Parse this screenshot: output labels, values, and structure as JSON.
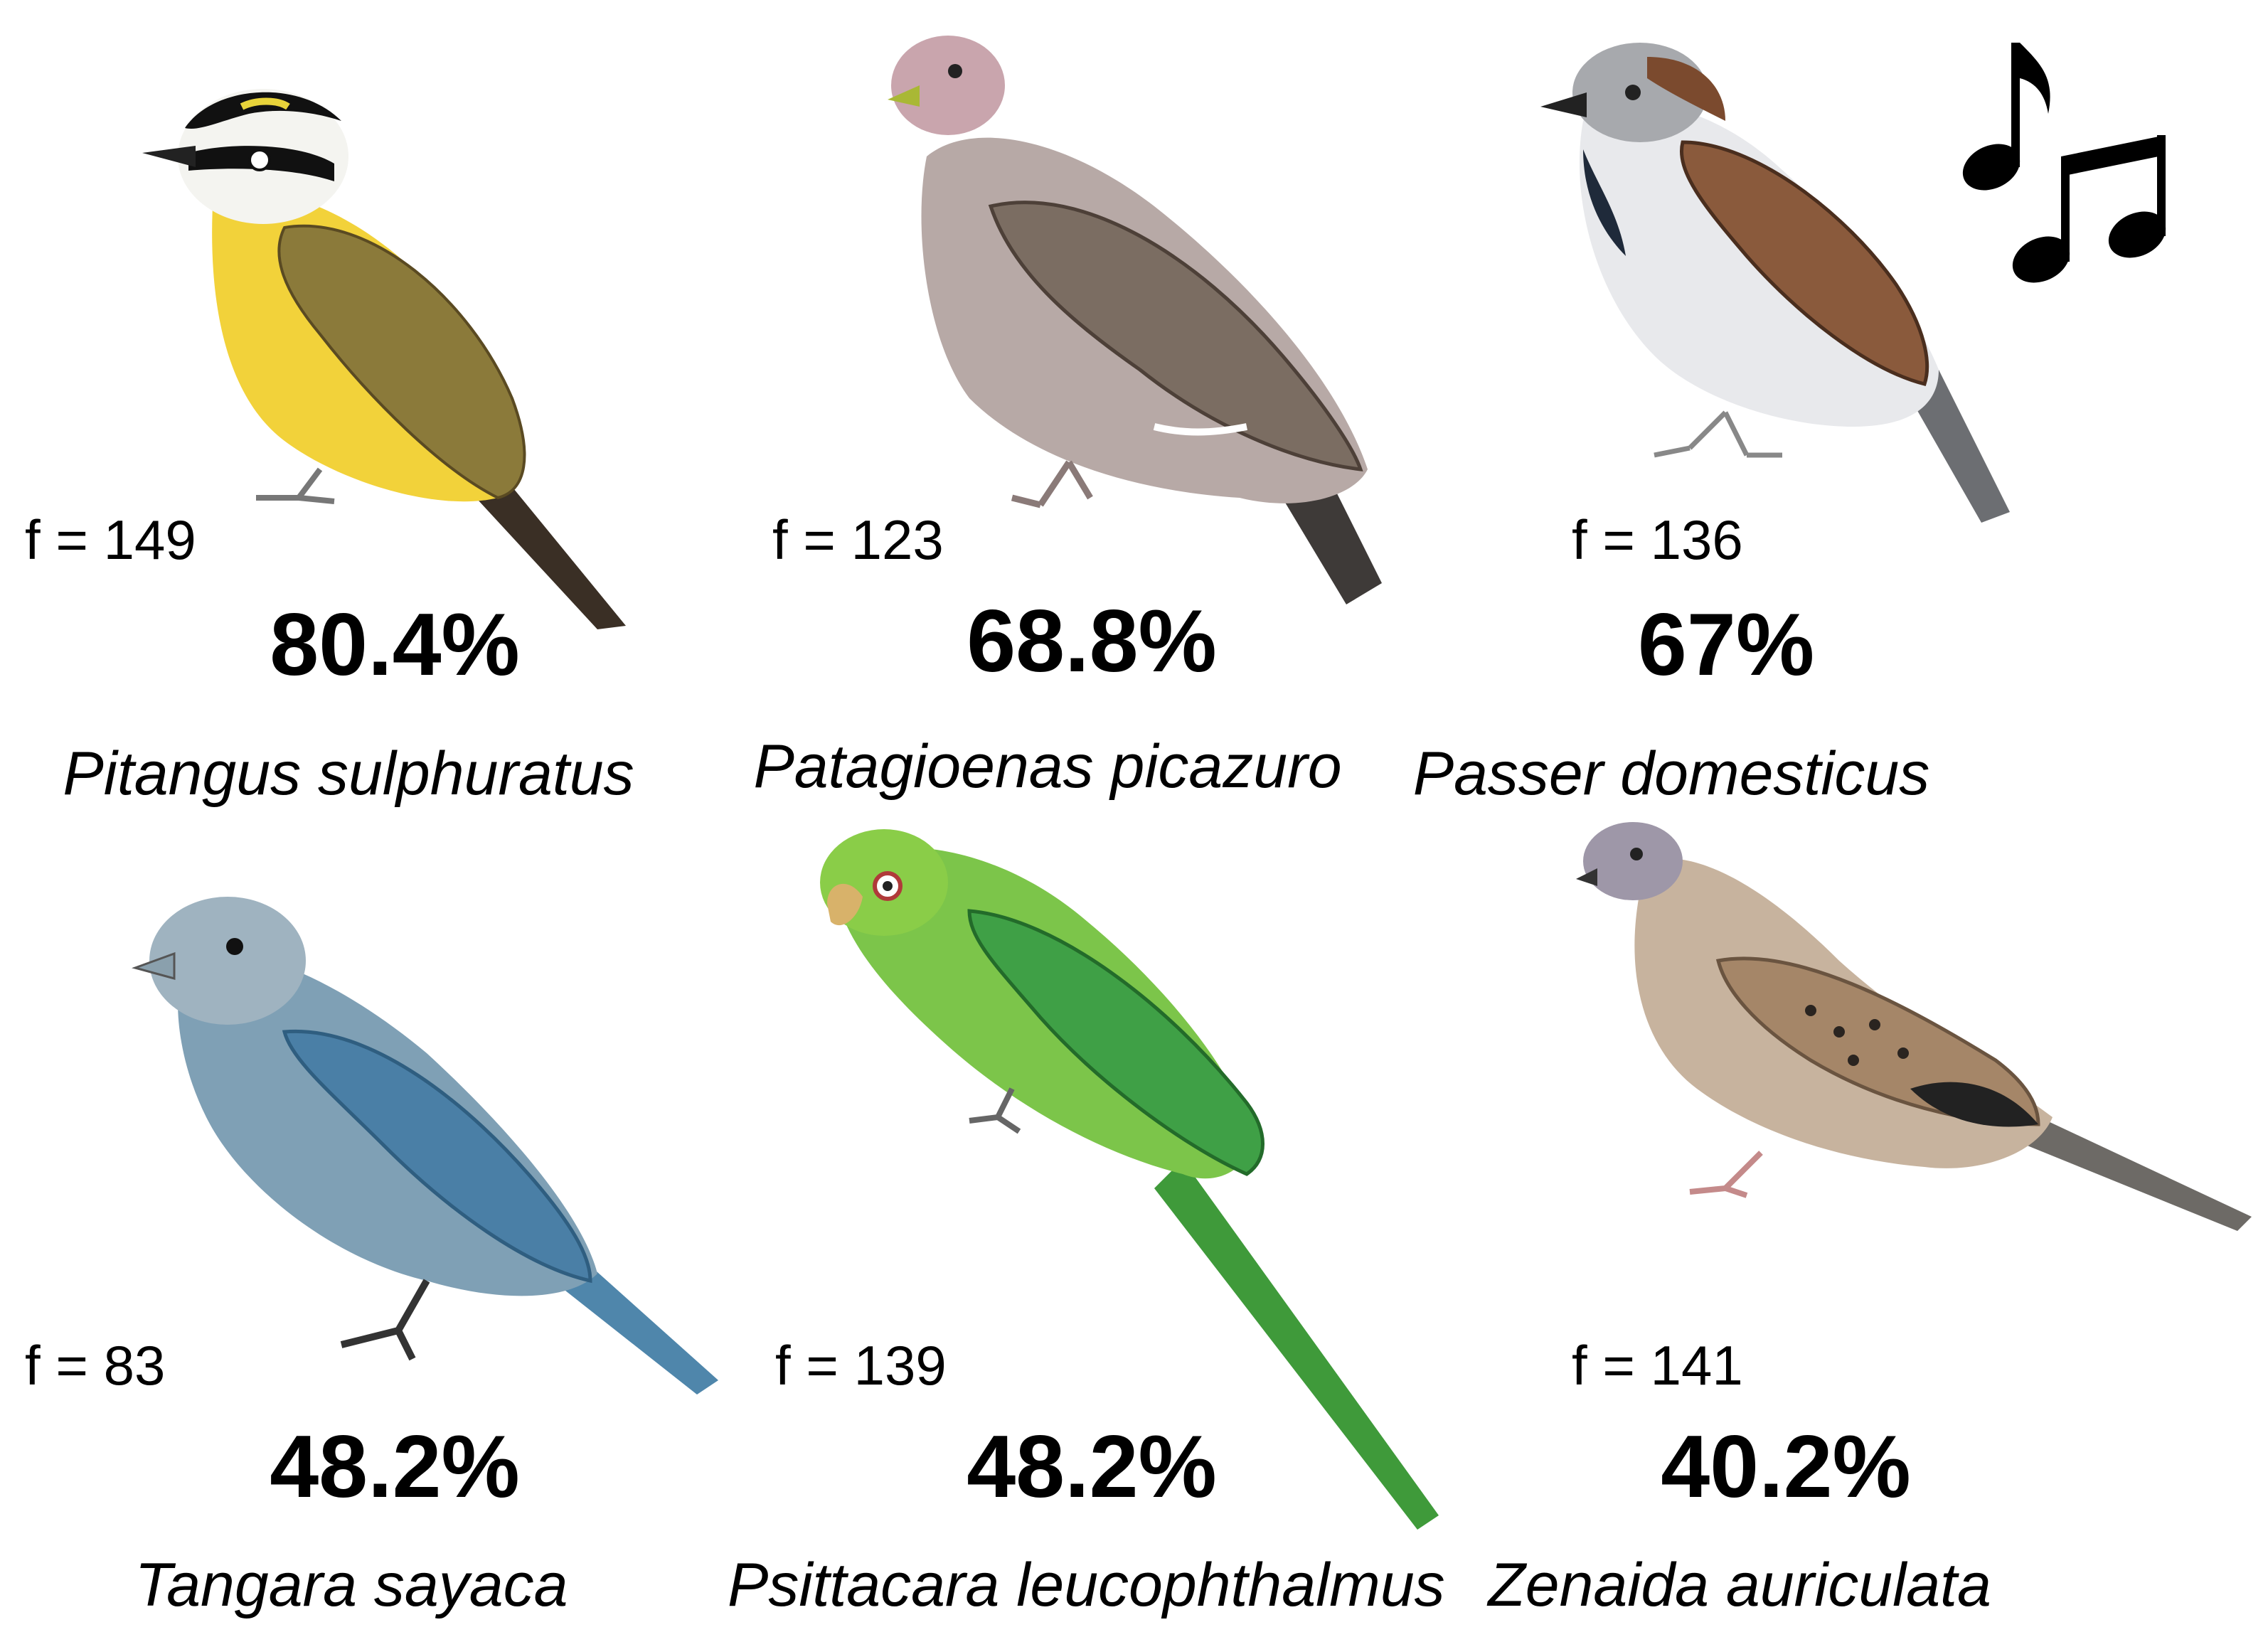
{
  "colors": {
    "background": "#ffffff",
    "text": "#000000",
    "kiskadee_yellow": "#f2d23a",
    "pigeon_gray": "#a79e9a",
    "sparrow_brown": "#8a5a3c",
    "tanager_blue": "#6f9bb5",
    "parakeet_green": "#5fbf3a",
    "dove_tan": "#b59a7e"
  },
  "icons": {
    "music": "music-notes-icon"
  },
  "birds": [
    {
      "freq": "f = 149",
      "percent": "80.4%",
      "species": "Pitangus sulphuratus",
      "icon": "kiskadee-illustration"
    },
    {
      "freq": "f = 123",
      "percent": "68.8%",
      "species": "Patagioenas picazuro",
      "icon": "pigeon-illustration"
    },
    {
      "freq": "f = 136",
      "percent": "67%",
      "species": "Passer domesticus",
      "icon": "sparrow-illustration"
    },
    {
      "freq": "f = 83",
      "percent": "48.2%",
      "species": "Tangara sayaca",
      "icon": "tanager-illustration"
    },
    {
      "freq": "f = 139",
      "percent": "48.2%",
      "species": "Psittacara leucophthalmus",
      "icon": "parakeet-illustration"
    },
    {
      "freq": "f = 141",
      "percent": "40.2%",
      "species": "Zenaida auriculata",
      "icon": "dove-illustration"
    }
  ]
}
